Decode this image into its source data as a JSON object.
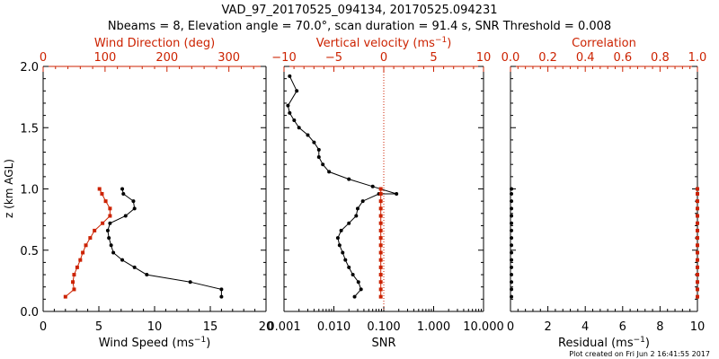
{
  "header": {
    "title": "VAD_97_20170525_094134, 20170525.094231",
    "subtitle": "Nbeams = 8, Elevation angle = 70.0°, scan duration = 91.4 s, SNR Threshold = 0.008"
  },
  "footer": {
    "plot_created": "Plot created on Fri Jun  2 16:41:55 2017"
  },
  "colors": {
    "primary": "#000000",
    "secondary": "#cc2200"
  },
  "chart_data": [
    {
      "type": "line",
      "ylabel_prefix": "z (km AGL)",
      "ylim": [
        0,
        2.0
      ],
      "yticks": [
        "0.0",
        "0.5",
        "1.0",
        "1.5",
        "2.0"
      ],
      "xlabel": "Wind Speed (ms",
      "xlabel_sup": "−1",
      "xlabel_suffix": ")",
      "xlim": [
        0,
        20
      ],
      "xticks": [
        "0",
        "5",
        "10",
        "15",
        "20"
      ],
      "top_label": "Wind Direction (deg)",
      "top_lim": [
        0,
        360
      ],
      "top_ticks": [
        "0",
        "100",
        "200",
        "300"
      ],
      "series": [
        {
          "axis": "bottom",
          "color": "#000000",
          "x": [
            16.0,
            16.0,
            13.2,
            9.3,
            8.2,
            7.1,
            6.3,
            6.1,
            5.9,
            5.8,
            6.0,
            7.4,
            8.2,
            8.1,
            7.2,
            7.1
          ],
          "y": [
            0.12,
            0.18,
            0.24,
            0.3,
            0.36,
            0.42,
            0.48,
            0.54,
            0.6,
            0.66,
            0.72,
            0.78,
            0.84,
            0.9,
            0.96,
            1.0
          ]
        },
        {
          "axis": "top",
          "color": "#cc2200",
          "x": [
            36,
            50,
            48,
            50,
            55,
            60,
            64,
            69,
            76,
            83,
            96,
            108,
            108,
            101,
            95,
            91
          ],
          "y": [
            0.12,
            0.18,
            0.24,
            0.3,
            0.36,
            0.42,
            0.48,
            0.54,
            0.6,
            0.66,
            0.72,
            0.78,
            0.84,
            0.9,
            0.96,
            1.0
          ]
        }
      ]
    },
    {
      "type": "line",
      "xlabel": "SNR",
      "xscale": "log",
      "xlim": [
        0.001,
        10
      ],
      "xticks": [
        "0.001",
        "0.010",
        "0.100",
        "1.000",
        "10.000"
      ],
      "top_label": "Vertical velocity (ms",
      "top_label_sup": "−1",
      "top_label_suffix": ")",
      "top_lim": [
        -10,
        10
      ],
      "top_ticks": [
        "−10",
        "−5",
        "0",
        "5",
        "10"
      ],
      "zero_line": 0,
      "series": [
        {
          "axis": "bottom",
          "color": "#000000",
          "x": [
            0.026,
            0.035,
            0.031,
            0.024,
            0.02,
            0.017,
            0.015,
            0.013,
            0.012,
            0.014,
            0.02,
            0.028,
            0.03,
            0.038,
            0.08,
            0.18,
            0.06,
            0.02,
            0.008,
            0.006,
            0.005,
            0.005,
            0.004,
            0.003,
            0.002,
            0.0016,
            0.0013,
            0.0012,
            0.0018,
            0.0013
          ],
          "y": [
            0.12,
            0.18,
            0.24,
            0.3,
            0.36,
            0.42,
            0.48,
            0.54,
            0.6,
            0.66,
            0.72,
            0.78,
            0.84,
            0.9,
            0.96,
            0.96,
            1.02,
            1.08,
            1.14,
            1.2,
            1.26,
            1.32,
            1.38,
            1.44,
            1.5,
            1.56,
            1.62,
            1.68,
            1.8,
            1.92
          ]
        },
        {
          "axis": "top",
          "color": "#cc2200",
          "x": [
            -0.3,
            -0.3,
            -0.3,
            -0.3,
            -0.3,
            -0.3,
            -0.3,
            -0.3,
            -0.3,
            -0.3,
            -0.3,
            -0.3,
            -0.3,
            -0.3,
            -0.3,
            -0.3
          ],
          "y": [
            0.12,
            0.18,
            0.24,
            0.3,
            0.36,
            0.42,
            0.48,
            0.54,
            0.6,
            0.66,
            0.72,
            0.78,
            0.84,
            0.9,
            0.96,
            1.0
          ]
        }
      ]
    },
    {
      "type": "scatter",
      "xlabel": "Residual (ms",
      "xlabel_sup": "−1",
      "xlabel_suffix": ")",
      "xlim": [
        0,
        10
      ],
      "xticks": [
        "0",
        "2",
        "4",
        "6",
        "8",
        "10"
      ],
      "top_label": "Correlation",
      "top_lim": [
        0,
        1.0
      ],
      "top_ticks": [
        "0.0",
        "0.2",
        "0.4",
        "0.6",
        "0.8",
        "1.0"
      ],
      "series": [
        {
          "axis": "bottom",
          "color": "#000000",
          "x": [
            0.05,
            0.05,
            0.05,
            0.05,
            0.05,
            0.05,
            0.05,
            0.05,
            0.05,
            0.05,
            0.05,
            0.05,
            0.05,
            0.05,
            0.05,
            0.05
          ],
          "y": [
            0.12,
            0.18,
            0.24,
            0.3,
            0.36,
            0.42,
            0.48,
            0.54,
            0.6,
            0.66,
            0.72,
            0.78,
            0.84,
            0.9,
            0.96,
            1.0
          ]
        },
        {
          "axis": "top",
          "color": "#cc2200",
          "x": [
            1.0,
            1.0,
            1.0,
            1.0,
            1.0,
            1.0,
            1.0,
            1.0,
            1.0,
            1.0,
            1.0,
            1.0,
            1.0,
            1.0,
            1.0,
            1.0
          ],
          "y": [
            0.12,
            0.18,
            0.24,
            0.3,
            0.36,
            0.42,
            0.48,
            0.54,
            0.6,
            0.66,
            0.72,
            0.78,
            0.84,
            0.9,
            0.96,
            1.0
          ]
        }
      ]
    }
  ]
}
